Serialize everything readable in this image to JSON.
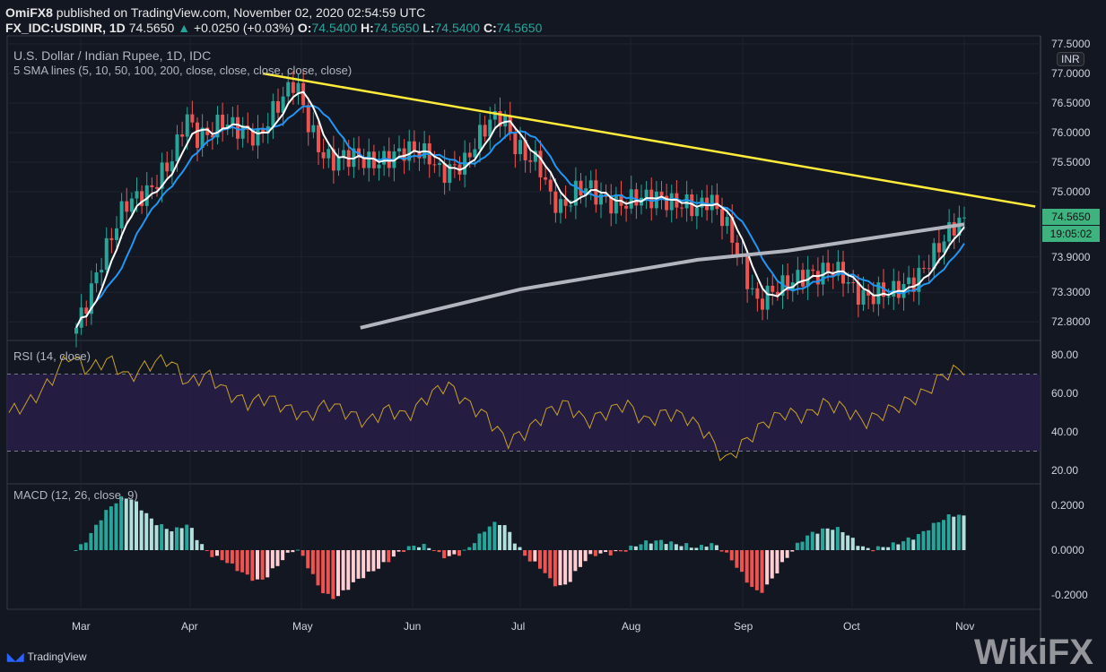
{
  "header": {
    "publisher": "OmiFX8",
    "published_text": "published on TradingView.com, November 02, 2020 02:54:59 UTC",
    "symbol": "FX_IDC:USDINR, 1D",
    "price": "74.5650",
    "change": "+0.0250 (+0.03%)",
    "o_label": "O:",
    "o": "74.5400",
    "h_label": "H:",
    "h": "74.5650",
    "l_label": "L:",
    "l": "74.5400",
    "c_label": "C:",
    "c": "74.5650"
  },
  "legend": {
    "title": "U.S. Dollar / Indian Rupee, 1D, IDC",
    "sma": "5 SMA lines (5, 10, 50, 100, 200, close, close, close, close, close)",
    "rsi": "RSI (14, close)",
    "macd": "MACD (12, 26, close, 9)"
  },
  "currency": "INR",
  "last_price_tag": "74.5650",
  "countdown": "19:05:02",
  "footer": {
    "brand": "TradingView"
  },
  "watermark": "WikiFX",
  "colors": {
    "up": "#26a69a",
    "down": "#ef5350",
    "sma5": "#ffffff",
    "sma10": "#2196f3",
    "sma200": "#b2b5be",
    "trend": "#ffeb3b",
    "rsi": "#c9a227"
  },
  "chart_data": {
    "type": "candlestick",
    "price_ticks": [
      "77.5000",
      "77.0000",
      "76.5000",
      "76.0000",
      "75.5000",
      "75.0000",
      "73.9000",
      "73.3000",
      "72.8000"
    ],
    "rsi_ticks": [
      "80.00",
      "60.00",
      "40.00",
      "20.00"
    ],
    "macd_ticks": [
      "0.2000",
      "0.0000",
      "-0.2000"
    ],
    "months": [
      "Mar",
      "Apr",
      "May",
      "Jun",
      "Jul",
      "Aug",
      "Sep",
      "Oct",
      "Nov"
    ],
    "closes": [
      72.7,
      73.2,
      73.8,
      74.3,
      74.8,
      74.9,
      75.0,
      75.3,
      75.6,
      76.3,
      75.9,
      76.0,
      76.2,
      76.1,
      76.0,
      75.9,
      76.3,
      76.6,
      76.9,
      76.2,
      75.7,
      75.5,
      75.6,
      75.6,
      75.5,
      75.5,
      75.6,
      75.7,
      75.7,
      75.6,
      75.3,
      75.4,
      75.5,
      75.9,
      76.2,
      76.3,
      75.8,
      75.6,
      75.5,
      74.9,
      74.7,
      75.0,
      75.1,
      74.9,
      74.8,
      74.8,
      74.9,
      74.9,
      74.9,
      74.8,
      74.8,
      74.7,
      74.9,
      74.6,
      74.2,
      73.6,
      73.1,
      73.3,
      73.4,
      73.5,
      73.6,
      73.6,
      73.7,
      73.6,
      73.3,
      73.2,
      73.3,
      73.3,
      73.4,
      73.5,
      73.8,
      74.1,
      74.4,
      74.565
    ],
    "sma200": [
      [
        0.32,
        72.7
      ],
      [
        0.5,
        73.35
      ],
      [
        0.7,
        73.85
      ],
      [
        0.8,
        74.0
      ],
      [
        1.0,
        74.45
      ]
    ],
    "trendline": [
      [
        77.0,
        0.21
      ],
      [
        74.75,
        1.08
      ]
    ],
    "rsi": [
      50,
      55,
      65,
      80,
      72,
      78,
      68,
      75,
      78,
      65,
      70,
      60,
      55,
      58,
      52,
      48,
      55,
      50,
      45,
      52,
      48,
      58,
      65,
      55,
      48,
      35,
      40,
      50,
      55,
      45,
      50,
      55,
      45,
      50,
      48,
      40,
      25,
      35,
      45,
      50,
      48,
      55,
      52,
      45,
      50,
      55,
      60,
      70,
      73
    ],
    "ylim": [
      72.6,
      77.6
    ]
  }
}
